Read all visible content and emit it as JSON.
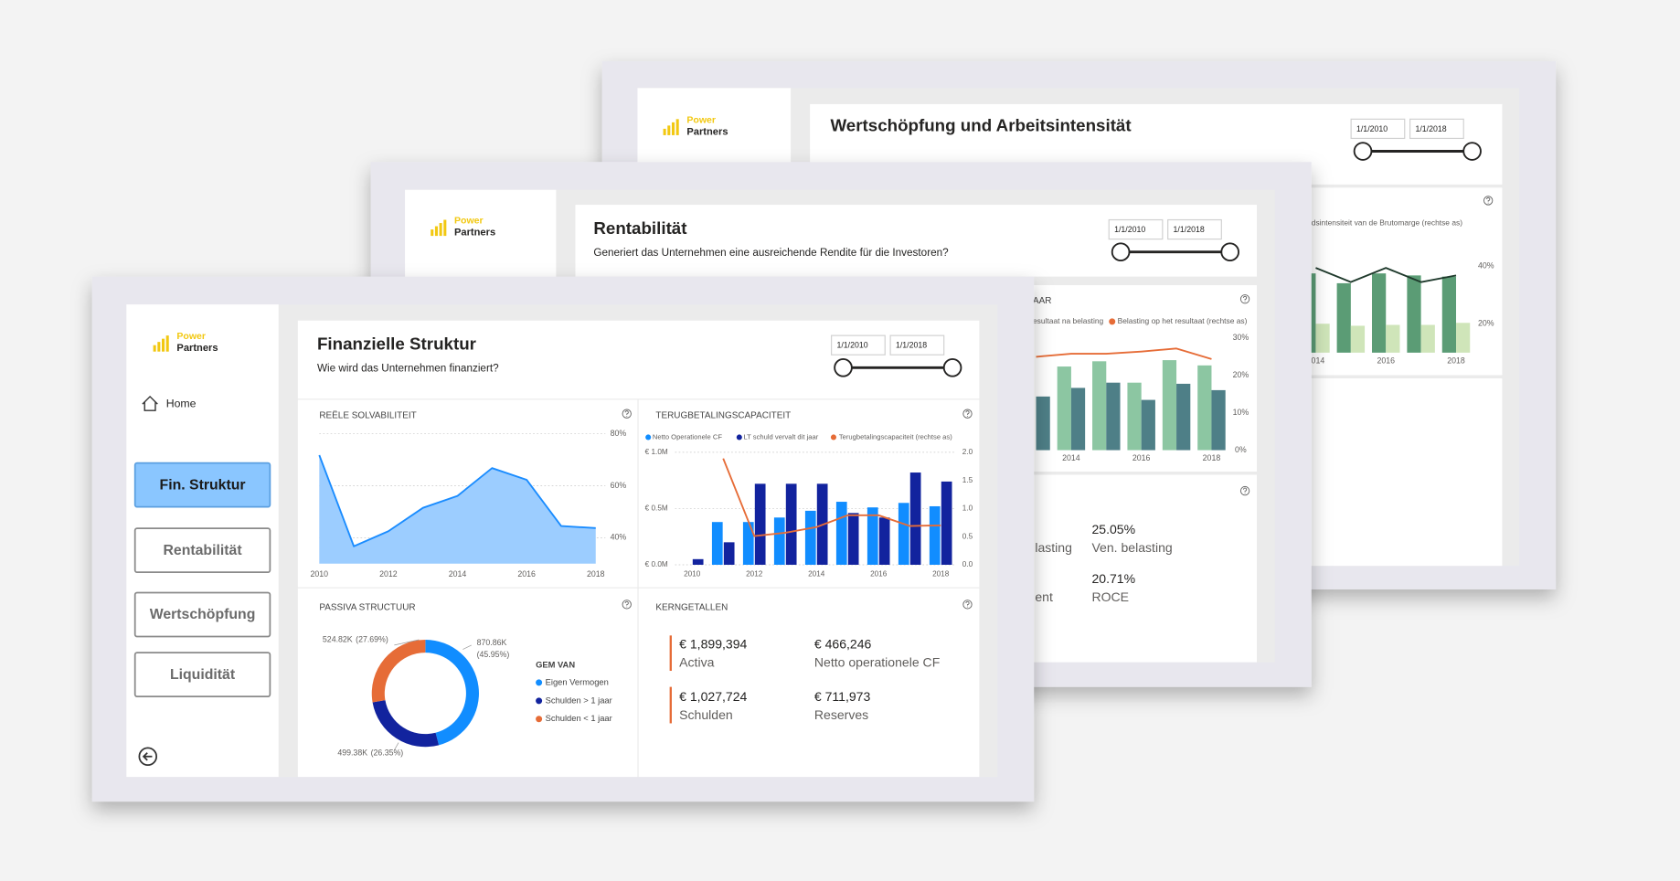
{
  "brand": {
    "line1": "Power",
    "line2": "Partners"
  },
  "back_window": {
    "title": "Wertschöpfung und Arbeitsintensität",
    "date_from": "1/1/2010",
    "date_to": "1/1/2018"
  },
  "middle_window": {
    "title": "Rentabilität",
    "subtitle": "Generiert das Unternehmen eine ausreichende Rendite für die Investoren?",
    "date_from": "1/1/2010",
    "date_to": "1/1/2018",
    "kpis": [
      {
        "value": "25.05%",
        "label": "Ven. belasting"
      },
      {
        "value": "20.71%",
        "label": "ROCE"
      }
    ],
    "kpi_fragments": [
      "lasting",
      "ent"
    ]
  },
  "front_window": {
    "nav": {
      "home": "Home",
      "items": [
        "Fin. Struktur",
        "Rentabilität",
        "Wertschöpfung",
        "Liquidität"
      ]
    },
    "title": "Finanzielle Struktur",
    "subtitle": "Wie wird das Unternehmen finanziert?",
    "date_from": "1/1/2010",
    "date_to": "1/1/2018",
    "kerngetallen": {
      "title": "KERNGETALLEN",
      "items": [
        {
          "value": "€ 1,899,394",
          "label": "Activa"
        },
        {
          "value": "€ 466,246",
          "label": "Netto operationele CF"
        },
        {
          "value": "€ 1,027,724",
          "label": "Schulden"
        },
        {
          "value": "€ 711,973",
          "label": "Reserves"
        }
      ]
    }
  },
  "chart_data": [
    {
      "type": "combo",
      "legend_fragment": "dsintensiteit van de Brutomarge (rechtse as)",
      "categories": [
        "2014",
        null,
        "2016",
        null,
        "2018"
      ],
      "ylim": [
        10,
        45
      ],
      "yticks": [
        {
          "value": 20,
          "label": "20%"
        },
        {
          "value": 40,
          "label": "40%"
        }
      ],
      "series": [
        {
          "type": "bar",
          "color": "#5b9c75",
          "values": [
            37.4,
            34,
            37.4,
            36.7,
            36.3
          ]
        },
        {
          "type": "bar",
          "color": "#cfe5b9",
          "values": [
            20,
            19.3,
            19.6,
            19.6,
            20.3
          ]
        },
        {
          "type": "line",
          "color": "#1f3a2c",
          "values": [
            39.3,
            34.4,
            39.3,
            34.4,
            36.7
          ]
        }
      ]
    },
    {
      "type": "combo",
      "title_fragment": "AAR",
      "legend_fragment": "esultaat na belasting",
      "categories": [
        null,
        "2014",
        null,
        "2016",
        null,
        "2018"
      ],
      "ylim": [
        0,
        30
      ],
      "yticks": [
        {
          "value": 0,
          "label": "0%"
        },
        {
          "value": 10,
          "label": "10%"
        },
        {
          "value": 20,
          "label": "20%"
        },
        {
          "value": 30,
          "label": "30%"
        }
      ],
      "series": [
        {
          "type": "bar",
          "color": "#8cc6a2",
          "values": [
            null,
            22.3,
            23.7,
            18,
            24,
            22.6
          ]
        },
        {
          "type": "bar",
          "color": "#4e7f87",
          "values": [
            14.3,
            16.6,
            18,
            13.4,
            17.7,
            16
          ]
        },
        {
          "type": "line",
          "name": "Belasting op het resultaat (rechtse as)",
          "color": "#e66c37",
          "values": [
            24.9,
            25.7,
            25.7,
            26.3,
            27.1,
            24.3
          ]
        }
      ]
    },
    {
      "type": "area",
      "title": "REËLE SOLVABILITEIT",
      "categories": [
        "2010",
        null,
        "2012",
        null,
        "2014",
        null,
        "2016",
        null,
        "2018"
      ],
      "values": [
        71.8,
        36.7,
        42.5,
        51.5,
        56.1,
        66.8,
        62.3,
        44.5,
        43.7
      ],
      "color": "#1a8cff",
      "fill": "#9ccdff",
      "ylim": [
        30,
        80
      ],
      "yticks": [
        {
          "value": 40,
          "label": "40%"
        },
        {
          "value": 60,
          "label": "60%"
        },
        {
          "value": 80,
          "label": "80%"
        }
      ],
      "grid": true
    },
    {
      "type": "combo",
      "title": "TERUGBETALINGSCAPACITEIT",
      "categories": [
        "2010",
        null,
        "2012",
        null,
        "2014",
        null,
        "2016",
        null,
        "2018"
      ],
      "ylim": [
        0,
        1
      ],
      "yticks": [
        {
          "value": 0,
          "label": "€ 0.0M"
        },
        {
          "value": 0.5,
          "label": "€ 0.5M"
        },
        {
          "value": 1,
          "label": "€ 1.0M"
        }
      ],
      "y2lim": [
        0,
        2
      ],
      "y2ticks": [
        {
          "value": 0,
          "label": "0.0"
        },
        {
          "value": 0.5,
          "label": "0.5"
        },
        {
          "value": 1,
          "label": "1.0"
        },
        {
          "value": 1.5,
          "label": "1.5"
        },
        {
          "value": 2,
          "label": "2.0"
        }
      ],
      "grid": true,
      "series": [
        {
          "type": "bar",
          "name": "Netto Operationele CF",
          "color": "#118dff",
          "values": [
            null,
            0.38,
            0.38,
            0.42,
            0.48,
            0.56,
            0.51,
            0.55,
            0.52
          ]
        },
        {
          "type": "bar",
          "name": "LT schuld vervalt dit jaar",
          "color": "#12239e",
          "values": [
            0.05,
            0.2,
            0.72,
            0.72,
            0.72,
            0.46,
            0.42,
            0.82,
            0.74
          ]
        },
        {
          "type": "line",
          "name": "Terugbetalingscapaciteit (rechtse as)",
          "color": "#e66c37",
          "axis": "y2",
          "values": [
            null,
            1.89,
            0.51,
            0.57,
            0.67,
            0.88,
            0.88,
            0.69,
            0.7
          ]
        }
      ]
    },
    {
      "type": "donut",
      "title": "PASSIVA STRUCTUUR",
      "legend_title": "GEM VAN",
      "categories": [
        "Eigen Vermogen",
        "Schulden > 1 jaar",
        "Schulden < 1 jaar"
      ],
      "values": [
        870.86,
        499.38,
        524.82
      ],
      "value_labels": [
        "870.86K",
        "499.38K",
        "524.82K"
      ],
      "percents": [
        45.95,
        26.35,
        27.69
      ],
      "percent_labels": [
        "(45.95%)",
        "(26.35%)",
        "(27.69%)"
      ],
      "colors": [
        "#118dff",
        "#12239e",
        "#e66c37"
      ]
    }
  ]
}
